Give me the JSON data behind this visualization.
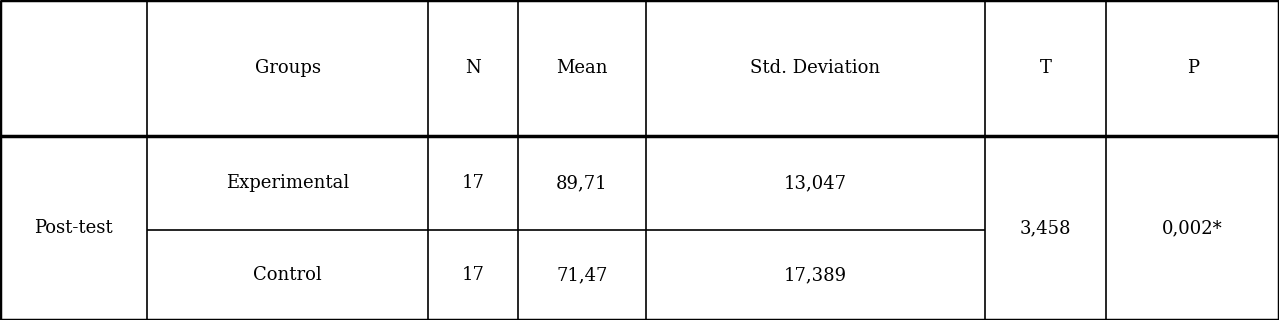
{
  "header_row": [
    "Groups",
    "N",
    "Mean",
    "Std. Deviation",
    "T",
    "P"
  ],
  "row1": [
    "Experimental",
    "17",
    "89,71",
    "13,047",
    "3,458",
    "0,002*"
  ],
  "row2": [
    "Control",
    "17",
    "71,47",
    "17,389",
    "",
    ""
  ],
  "row_label": "Post-test",
  "col_starts": [
    0.0,
    0.115,
    0.335,
    0.405,
    0.505,
    0.77,
    0.865
  ],
  "col_ends": [
    0.115,
    0.335,
    0.405,
    0.505,
    0.77,
    0.865,
    1.0
  ],
  "row_tops": [
    1.0,
    0.575,
    0.28
  ],
  "row_bottoms": [
    0.575,
    0.28,
    0.0
  ],
  "background_color": "#ffffff",
  "line_color": "#000000",
  "text_color": "#000000",
  "font_size": 13,
  "lw_thin": 1.2,
  "lw_thick": 2.5
}
